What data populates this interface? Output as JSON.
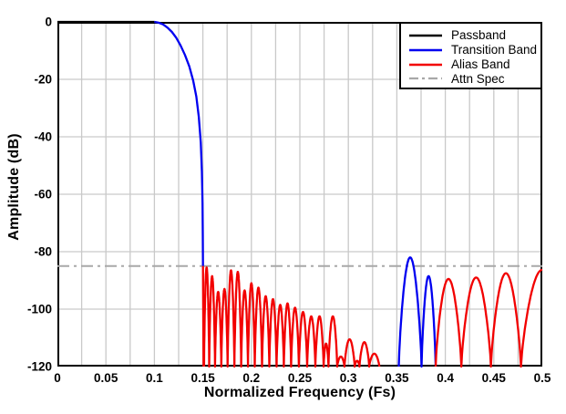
{
  "chart_data": {
    "type": "line",
    "title": "",
    "xlabel": "Normalized Frequency (Fs)",
    "ylabel": "Amplitude (dB)",
    "xlim": [
      0,
      0.5
    ],
    "ylim": [
      -120,
      0
    ],
    "grid": true,
    "x_minor_step": 0.025,
    "axes": {
      "x_ticks": [
        {
          "v": 0,
          "l": "0"
        },
        {
          "v": 0.05,
          "l": "0.05"
        },
        {
          "v": 0.1,
          "l": "0.1"
        },
        {
          "v": 0.15,
          "l": "0.15"
        },
        {
          "v": 0.2,
          "l": "0.2"
        },
        {
          "v": 0.25,
          "l": "0.25"
        },
        {
          "v": 0.3,
          "l": "0.3"
        },
        {
          "v": 0.35,
          "l": "0.35"
        },
        {
          "v": 0.4,
          "l": "0.4"
        },
        {
          "v": 0.45,
          "l": "0.45"
        },
        {
          "v": 0.5,
          "l": "0.5"
        }
      ],
      "y_ticks": [
        {
          "v": 0,
          "l": "0"
        },
        {
          "v": -20,
          "l": "-20"
        },
        {
          "v": -40,
          "l": "-40"
        },
        {
          "v": -60,
          "l": "-60"
        },
        {
          "v": -80,
          "l": "-80"
        },
        {
          "v": -100,
          "l": "-100"
        },
        {
          "v": -120,
          "l": "-120"
        }
      ]
    },
    "colors": {
      "grid": "#c9c9c9",
      "frame": "#000000",
      "passband": "#000000",
      "transition": "#0000f0",
      "alias": "#f20000",
      "attn_spec": "#a8a8a8",
      "text": "#000000"
    },
    "attn_spec_db": -85,
    "legend": {
      "position": "top-right",
      "items": [
        {
          "label": "Passband",
          "color": "#000000",
          "dash": false
        },
        {
          "label": "Transition Band",
          "color": "#0000f0",
          "dash": false
        },
        {
          "label": "Alias Band",
          "color": "#f20000",
          "dash": false
        },
        {
          "label": "Attn Spec",
          "color": "#a8a8a8",
          "dash": true
        }
      ]
    },
    "series": [
      {
        "name": "Attn Spec",
        "color": "#a8a8a8",
        "width": 2,
        "dash": [
          13,
          5,
          3,
          5
        ],
        "segments": [
          {
            "type": "points",
            "points": [
              [
                0,
                -85
              ],
              [
                0.5,
                -85
              ]
            ]
          }
        ]
      },
      {
        "name": "Passband",
        "color": "#000000",
        "width": 2.3,
        "segments": [
          {
            "type": "points",
            "points": [
              [
                0,
                0
              ],
              [
                0.1,
                0
              ]
            ]
          }
        ]
      },
      {
        "name": "Transition Band",
        "color": "#0000f0",
        "width": 2.3,
        "segments": [
          {
            "type": "points",
            "points": [
              [
                0.1,
                0
              ],
              [
                0.1045,
                -0.3
              ],
              [
                0.109,
                -0.9
              ],
              [
                0.1135,
                -2
              ],
              [
                0.118,
                -3.5
              ],
              [
                0.1225,
                -5.5
              ],
              [
                0.127,
                -8.2
              ],
              [
                0.1315,
                -11.5
              ],
              [
                0.136,
                -15.5
              ],
              [
                0.14,
                -20.5
              ],
              [
                0.1432,
                -26
              ],
              [
                0.1458,
                -33
              ],
              [
                0.1478,
                -42
              ],
              [
                0.149,
                -52
              ],
              [
                0.1496,
                -63
              ],
              [
                0.1499,
                -74
              ],
              [
                0.1501,
                -85
              ]
            ]
          },
          {
            "type": "lobes",
            "lobes": [
              [
                0.352,
                0.3755,
                -82
              ],
              [
                0.3755,
                0.39,
                -88.5
              ]
            ]
          }
        ]
      },
      {
        "name": "Alias Band",
        "color": "#f20000",
        "width": 2.3,
        "segments": [
          {
            "type": "points",
            "points": [
              [
                0.1501,
                -85
              ],
              [
                0.1507,
                -120
              ]
            ]
          },
          {
            "type": "lobes",
            "lobes": [
              [
                0.1512,
                0.1565,
                -85.5
              ],
              [
                0.1565,
                0.1625,
                -88.5
              ],
              [
                0.1625,
                0.169,
                -94
              ],
              [
                0.169,
                0.1755,
                -93
              ],
              [
                0.1755,
                0.1825,
                -86.5
              ],
              [
                0.1825,
                0.1895,
                -87
              ],
              [
                0.1895,
                0.1965,
                -93.5
              ],
              [
                0.1965,
                0.2035,
                -91
              ],
              [
                0.2035,
                0.211,
                -92.5
              ],
              [
                0.211,
                0.2185,
                -95.5
              ],
              [
                0.2185,
                0.226,
                -96.5
              ],
              [
                0.226,
                0.2335,
                -98.5
              ],
              [
                0.2335,
                0.241,
                -98
              ],
              [
                0.241,
                0.249,
                -99.5
              ],
              [
                0.249,
                0.2575,
                -101
              ],
              [
                0.2575,
                0.266,
                -102.5
              ],
              [
                0.266,
                0.2745,
                -102.5
              ],
              [
                0.2745,
                0.2795,
                -112
              ],
              [
                0.2795,
                0.2885,
                -102.5
              ],
              [
                0.2885,
                0.296,
                -116.5
              ],
              [
                0.296,
                0.3065,
                -110.5
              ],
              [
                0.3065,
                0.3115,
                -118
              ],
              [
                0.3115,
                0.3215,
                -111.5
              ],
              [
                0.3215,
                0.332,
                -115.5
              ]
            ]
          },
          {
            "type": "lobes",
            "lobes": [
              [
                0.39,
                0.4165,
                -89.5
              ],
              [
                0.4165,
                0.447,
                -89
              ],
              [
                0.447,
                0.478,
                -87.5
              ],
              [
                0.478,
                0.522,
                -86.3
              ]
            ]
          }
        ]
      }
    ]
  }
}
